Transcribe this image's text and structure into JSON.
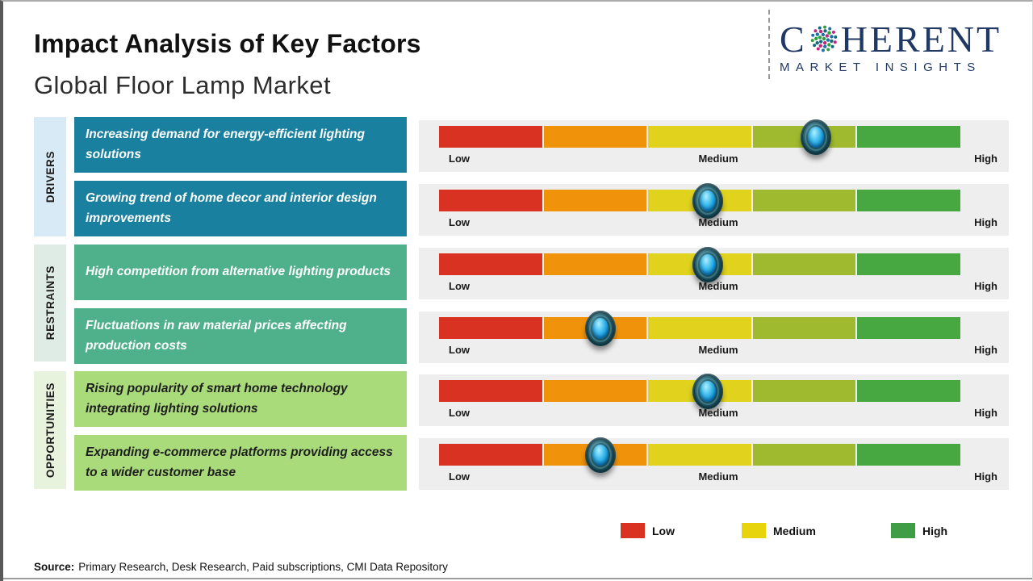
{
  "header": {
    "title": "Impact Analysis of Key Factors",
    "subtitle": "Global Floor Lamp Market"
  },
  "logo": {
    "prefix": "C",
    "suffix": "HERENT",
    "tagline": "MARKET INSIGHTS",
    "color": "#203864"
  },
  "sections": [
    {
      "label": "DRIVERS"
    },
    {
      "label": "RESTRAINTS"
    },
    {
      "label": "OPPORTUNITIES"
    }
  ],
  "rows": [
    {
      "section": "Drivers",
      "factor": "Increasing demand for energy-efficient lighting solutions",
      "impact_level": "Medium-High",
      "impact_pct": 72.3
    },
    {
      "section": "Drivers",
      "factor": "Growing trend of home decor and interior design improvements",
      "impact_level": "Medium",
      "impact_pct": 51.5
    },
    {
      "section": "Restraints",
      "factor": "High competition from alternative lighting products",
      "impact_level": "Medium",
      "impact_pct": 51.5
    },
    {
      "section": "Restraints",
      "factor": "Fluctuations in raw material prices affecting production costs",
      "impact_level": "Low-Medium",
      "impact_pct": 31
    },
    {
      "section": "Opportunities",
      "factor": "Rising popularity of smart home technology integrating lighting solutions",
      "impact_level": "Medium",
      "impact_pct": 51.5
    },
    {
      "section": "Opportunities",
      "factor": "Expanding e-commerce platforms providing access to a wider customer base",
      "impact_level": "Low-Medium",
      "impact_pct": 31
    }
  ],
  "scale": {
    "low": "Low",
    "medium": "Medium",
    "high": "High",
    "colors": [
      "#d93222",
      "#f0930b",
      "#e0d21d",
      "#9fba2e",
      "#47a741"
    ]
  },
  "legend": {
    "items": [
      {
        "label": "Low",
        "color": "#d93222"
      },
      {
        "label": "Medium",
        "color": "#e8d40c"
      },
      {
        "label": "High",
        "color": "#3f9e45"
      }
    ]
  },
  "source": {
    "label": "Source:",
    "text": "Primary Research, Desk Research, Paid subscriptions, CMI Data Repository"
  },
  "chart_data": {
    "type": "table",
    "title": "Impact Analysis of Key Factors",
    "subtitle": "Global Floor Lamp Market",
    "scale": {
      "axis_labels": [
        "Low",
        "Medium",
        "High"
      ],
      "segments": 5,
      "segment_colors": [
        "#d93222",
        "#f0930b",
        "#e0d21d",
        "#9fba2e",
        "#47a741"
      ],
      "range_pct": [
        0,
        100
      ]
    },
    "rows": [
      {
        "category": "Drivers",
        "factor": "Increasing demand for energy-efficient lighting solutions",
        "impact": "Medium-High",
        "impact_pct": 72.3
      },
      {
        "category": "Drivers",
        "factor": "Growing trend of home decor and interior design improvements",
        "impact": "Medium",
        "impact_pct": 51.5
      },
      {
        "category": "Restraints",
        "factor": "High competition from alternative lighting products",
        "impact": "Medium",
        "impact_pct": 51.5
      },
      {
        "category": "Restraints",
        "factor": "Fluctuations in raw material prices affecting production costs",
        "impact": "Low-Medium",
        "impact_pct": 31
      },
      {
        "category": "Opportunities",
        "factor": "Rising popularity of smart home technology integrating lighting solutions",
        "impact": "Medium",
        "impact_pct": 51.5
      },
      {
        "category": "Opportunities",
        "factor": "Expanding e-commerce platforms providing access to a wider customer base",
        "impact": "Low-Medium",
        "impact_pct": 31
      }
    ],
    "legend": [
      "Low",
      "Medium",
      "High"
    ],
    "legend_position": "bottom"
  }
}
